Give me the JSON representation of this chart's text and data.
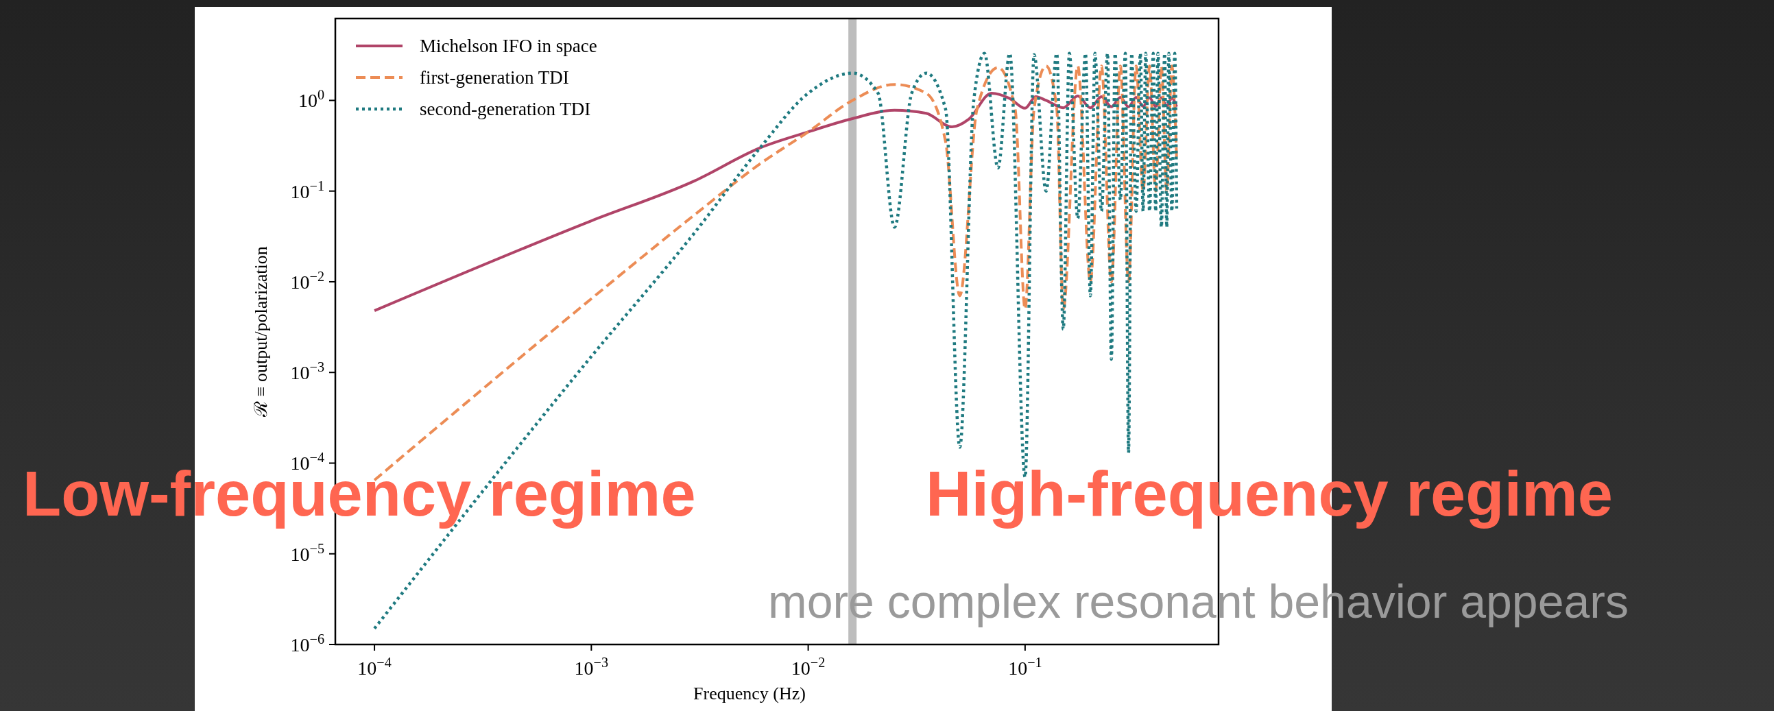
{
  "chart_data": {
    "type": "line",
    "xlabel": "Frequency (Hz)",
    "ylabel": "ℛ ≡ output/polarization",
    "log": "xy",
    "grid": false,
    "legend": "top left",
    "marker": "none",
    "xlim": [
      6.6e-05,
      0.78
    ],
    "ylim": [
      1e-06,
      8
    ],
    "xticks": [
      {
        "value": 0.0001,
        "label": "10$^{−4}$"
      },
      {
        "value": 0.001,
        "label": "10$^{−3}$"
      },
      {
        "value": 0.01,
        "label": "10$^{−2}$"
      },
      {
        "value": 0.1,
        "label": "10$^{−1}$"
      }
    ],
    "yticks": [
      {
        "value": 1e-06,
        "label": "10$^{−6}$"
      },
      {
        "value": 1e-05,
        "label": "10$^{−5}$"
      },
      {
        "value": 0.0001,
        "label": "10$^{−4}$"
      },
      {
        "value": 0.001,
        "label": "10$^{−3}$"
      },
      {
        "value": 0.01,
        "label": "10$^{−2}$"
      },
      {
        "value": 0.1,
        "label": "10$^{−1}$"
      },
      {
        "value": 1,
        "label": "10$^{0}$"
      }
    ],
    "ref_lines": [
      {
        "axis": "x",
        "value": 0.016,
        "label": null,
        "color": "#bdbdbd"
      }
    ],
    "series": [
      {
        "name": "Michelson IFO in space",
        "color": "#b04468",
        "line_style": "solid",
        "x": [
          0.0001,
          0.001,
          0.003,
          0.006,
          0.01,
          0.016,
          0.025,
          0.035,
          0.046,
          0.055,
          0.07,
          0.085,
          0.1,
          0.112,
          0.125,
          0.15,
          0.175,
          0.2,
          0.225,
          0.25,
          0.275,
          0.3,
          0.325,
          0.35,
          0.375,
          0.4,
          0.425,
          0.45,
          0.475,
          0.5
        ],
        "values": [
          0.0048,
          0.047,
          0.13,
          0.3,
          0.45,
          0.63,
          0.78,
          0.72,
          0.51,
          0.62,
          1.2,
          1.05,
          0.82,
          1.1,
          1.0,
          0.83,
          1.12,
          0.83,
          1.1,
          0.85,
          1.08,
          0.85,
          1.08,
          0.86,
          1.07,
          0.86,
          1.07,
          0.87,
          1.06,
          0.85
        ]
      },
      {
        "name": "first-generation TDI",
        "color": "#ec8c55",
        "line_style": "dashed",
        "x": [
          0.0001,
          0.001,
          0.003,
          0.006,
          0.01,
          0.016,
          0.025,
          0.035,
          0.043,
          0.05,
          0.06,
          0.075,
          0.09,
          0.1,
          0.11,
          0.125,
          0.14,
          0.15,
          0.175,
          0.2,
          0.225,
          0.25,
          0.275,
          0.3,
          0.325,
          0.35,
          0.375,
          0.4,
          0.425,
          0.45,
          0.475,
          0.5
        ],
        "values": [
          6.5e-05,
          0.0065,
          0.055,
          0.2,
          0.45,
          1.0,
          1.5,
          1.2,
          0.35,
          0.007,
          0.8,
          2.3,
          0.8,
          0.005,
          0.8,
          2.4,
          0.8,
          0.005,
          2.4,
          0.01,
          2.4,
          0.01,
          2.4,
          0.01,
          2.4,
          0.1,
          2.4,
          0.1,
          2.4,
          0.1,
          2.4,
          0.22
        ]
      },
      {
        "name": "second-generation TDI",
        "color": "#1f7a80",
        "line_style": "dotted",
        "x": [
          0.0001,
          0.001,
          0.003,
          0.006,
          0.01,
          0.016,
          0.021,
          0.025,
          0.03,
          0.035,
          0.043,
          0.05,
          0.058,
          0.065,
          0.075,
          0.085,
          0.1,
          0.11,
          0.125,
          0.14,
          0.15,
          0.16,
          0.175,
          0.19,
          0.2,
          0.21,
          0.225,
          0.24,
          0.25,
          0.26,
          0.275,
          0.29,
          0.3,
          0.31,
          0.325,
          0.34,
          0.35,
          0.36,
          0.375,
          0.39,
          0.4,
          0.41,
          0.425,
          0.44,
          0.45,
          0.46,
          0.475,
          0.49,
          0.5
        ],
        "values": [
          1.5e-06,
          0.0015,
          0.035,
          0.3,
          1.2,
          2.0,
          1.2,
          0.04,
          1.2,
          2.0,
          0.8,
          0.00015,
          1.0,
          3.3,
          0.18,
          3.3,
          7e-05,
          3.2,
          0.1,
          3.3,
          0.003,
          3.3,
          0.05,
          3.3,
          0.007,
          3.3,
          0.06,
          3.3,
          0.0014,
          3.3,
          0.08,
          3.3,
          0.00013,
          3.3,
          0.06,
          3.3,
          0.06,
          3.3,
          0.06,
          3.3,
          0.06,
          3.3,
          0.04,
          3.3,
          0.04,
          3.3,
          0.06,
          3.3,
          0.064
        ]
      }
    ],
    "annotations": [
      "Low-frequency regime",
      "High-frequency regime",
      "more complex resonant behavior appears"
    ]
  }
}
